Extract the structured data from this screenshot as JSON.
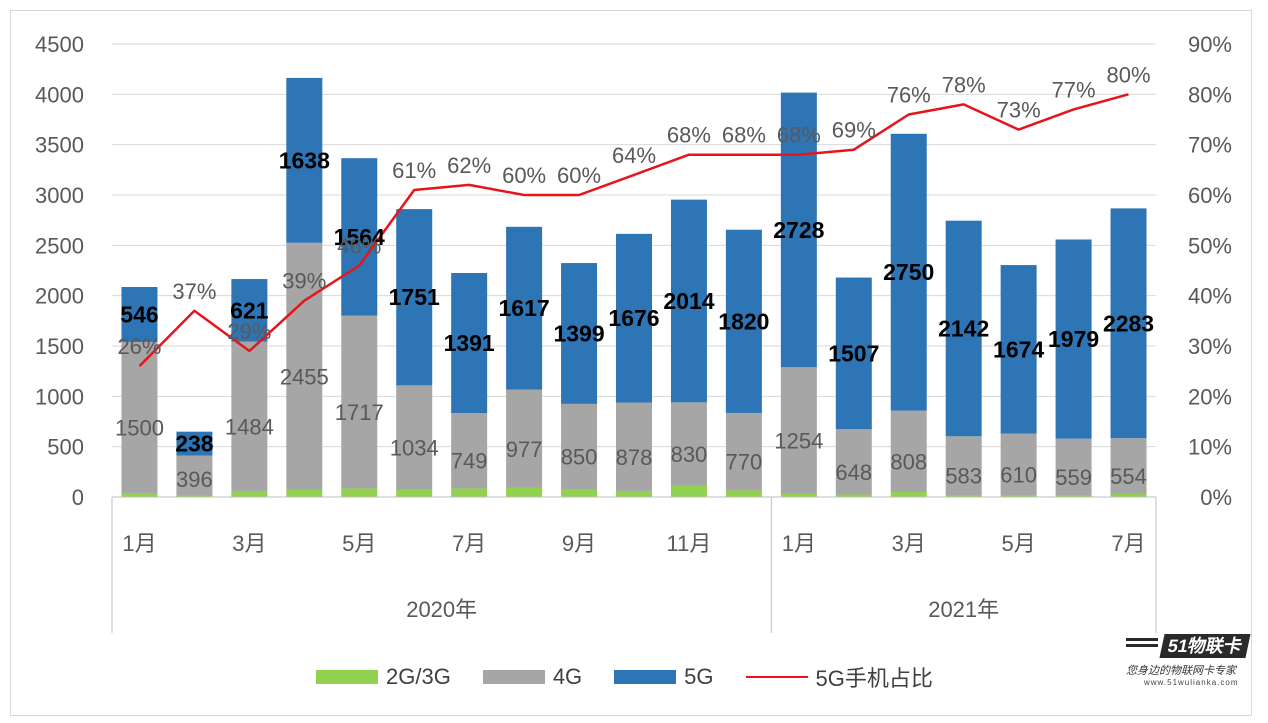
{
  "chart_data": {
    "type": "bar",
    "stacked": true,
    "periods": [
      {
        "year": "2020年",
        "months": [
          "1月",
          "",
          "3月",
          "",
          "5月",
          "",
          "7月",
          "",
          "9月",
          "",
          "11月",
          ""
        ]
      },
      {
        "year": "2021年",
        "months": [
          "1月",
          "",
          "3月",
          "",
          "5月",
          "",
          "7月"
        ]
      }
    ],
    "series": [
      {
        "name": "2G/3G",
        "type": "bar",
        "axis": "left",
        "color": "#92d050",
        "values": [
          40,
          15,
          60,
          70,
          85,
          75,
          85,
          90,
          75,
          60,
          110,
          65,
          35,
          25,
          50,
          20,
          20,
          20,
          30
        ]
      },
      {
        "name": "4G",
        "type": "bar",
        "axis": "left",
        "color": "#a6a6a6",
        "values": [
          1500,
          396,
          1484,
          2455,
          1717,
          1034,
          749,
          977,
          850,
          878,
          830,
          770,
          1254,
          648,
          808,
          583,
          610,
          559,
          554
        ]
      },
      {
        "name": "5G",
        "type": "bar",
        "axis": "left",
        "color": "#2e75b6",
        "values": [
          546,
          238,
          621,
          1638,
          1564,
          1751,
          1391,
          1617,
          1399,
          1676,
          2014,
          1820,
          2728,
          1507,
          2750,
          2142,
          1674,
          1979,
          2283
        ]
      },
      {
        "name": "5G手机占比",
        "type": "line",
        "axis": "right",
        "color": "#e8141b",
        "values": [
          26,
          37,
          29,
          39,
          46,
          61,
          62,
          60,
          60,
          64,
          68,
          68,
          68,
          69,
          76,
          78,
          73,
          77,
          80
        ]
      }
    ],
    "labels_4g": [
      "1500",
      "396",
      "1484",
      "2455",
      "1717",
      "1034",
      "749",
      "977",
      "850",
      "878",
      "830",
      "770",
      "1254",
      "648",
      "808",
      "583",
      "610",
      "559",
      "554"
    ],
    "labels_5g": [
      "546",
      "238",
      "621",
      "1638",
      "1564",
      "1751",
      "1391",
      "1617",
      "1399",
      "1676",
      "2014",
      "1820",
      "2728",
      "1507",
      "2750",
      "2142",
      "1674",
      "1979",
      "2283"
    ],
    "labels_pct": [
      "26%",
      "37%",
      "29%",
      "39%",
      "46%",
      "61%",
      "62%",
      "60%",
      "60%",
      "64%",
      "68%",
      "68%",
      "68%",
      "69%",
      "76%",
      "78%",
      "73%",
      "77%",
      "80%"
    ],
    "left_axis": {
      "min": 0,
      "max": 4500,
      "step": 500,
      "ticks": [
        "0",
        "500",
        "1000",
        "1500",
        "2000",
        "2500",
        "3000",
        "3500",
        "4000",
        "4500"
      ]
    },
    "right_axis": {
      "min": 0,
      "max": 90,
      "step": 10,
      "ticks": [
        "0%",
        "10%",
        "20%",
        "30%",
        "40%",
        "50%",
        "60%",
        "70%",
        "80%",
        "90%"
      ]
    },
    "grid": true,
    "legend_position": "bottom"
  },
  "legend": {
    "items": [
      {
        "label": "2G/3G",
        "color": "#92d050",
        "kind": "bar"
      },
      {
        "label": "4G",
        "color": "#a6a6a6",
        "kind": "bar"
      },
      {
        "label": "5G",
        "color": "#2e75b6",
        "kind": "bar"
      },
      {
        "label": "5G手机占比",
        "color": "#e8141b",
        "kind": "line"
      }
    ]
  },
  "logo": {
    "badge": "51物联卡",
    "slogan": "您身边的物联网卡专家",
    "url": "www.51wulianka.com"
  }
}
